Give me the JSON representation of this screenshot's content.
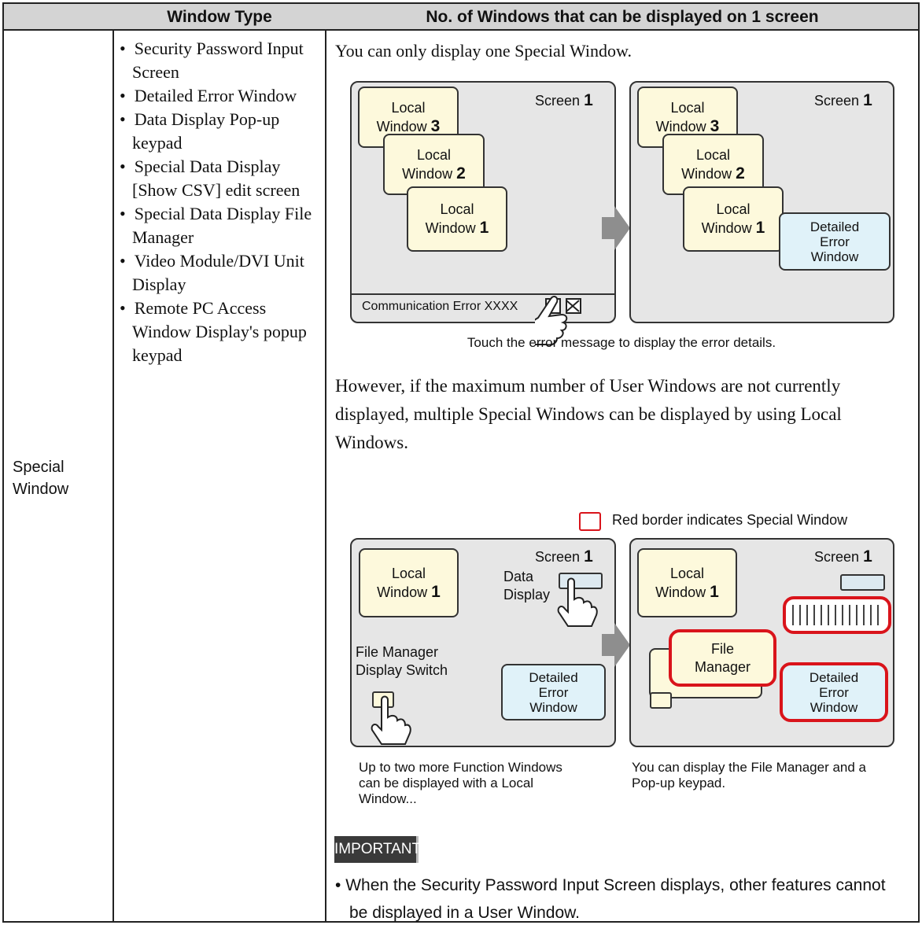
{
  "header": {
    "window_type": "Window Type",
    "count": "No. of Windows that can be displayed on 1 screen"
  },
  "row": {
    "label": "Special Window",
    "window_types": [
      "Security Password Input Screen",
      "Detailed Error Window",
      "Data Display Pop-up keypad",
      "Special Data Display [Show CSV] edit screen",
      "Special Data Display File Manager",
      "Video Module/DVI Unit Display",
      "Remote PC Access Window Display's popup keypad"
    ]
  },
  "intro": "You can only display one Special Window.",
  "diagram1": {
    "screen": {
      "label": "Screen",
      "number": "1"
    },
    "local_windows": [
      {
        "label": "Local Window",
        "number": "3"
      },
      {
        "label": "Local Window",
        "number": "2"
      },
      {
        "label": "Local Window",
        "number": "1"
      }
    ],
    "status": "Communication Error XXXX",
    "detail": "Detailed Error Window",
    "caption": "Touch the error message to display the error details."
  },
  "paragraph": "However, if the maximum number of User Windows are not currently displayed, multiple Special Windows can be displayed by using Local Windows.",
  "diagram2": {
    "legend": "Red border indicates Special Window",
    "screen": {
      "label": "Screen",
      "number": "1"
    },
    "local_window": {
      "label": "Local Window",
      "number": "1"
    },
    "data_display": "Data Display",
    "switch": "File Manager Display Switch",
    "detail": "Detailed Error Window",
    "file_manager": "File Manager",
    "captions": [
      "Up to two more Function Windows can be displayed with a Local Window...",
      "You can display the File Manager and a Pop-up keypad."
    ]
  },
  "important": {
    "label": "IMPORTANT",
    "notes": [
      "When the Security Password Input Screen displays, other features cannot be displayed in a User Window."
    ]
  }
}
